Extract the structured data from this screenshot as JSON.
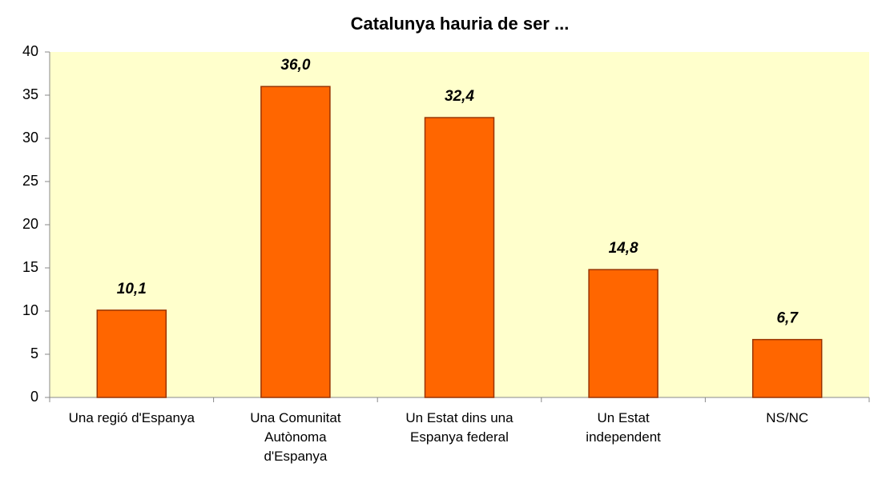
{
  "chart_data": {
    "type": "bar",
    "title": "Catalunya hauria de ser ...",
    "categories": [
      "Una regió d'Espanya",
      "Una Comunitat\nAutònoma\nd'Espanya",
      "Un Estat dins una\nEspanya federal",
      "Un Estat\nindependent",
      "NS/NC"
    ],
    "values": [
      10.1,
      36.0,
      32.4,
      14.8,
      6.7
    ],
    "value_labels": [
      "10,1",
      "36,0",
      "32,4",
      "14,8",
      "6,7"
    ],
    "color": "#ff6600",
    "plot_background": "#ffffcc",
    "ylim": [
      0,
      40
    ],
    "yticks": [
      0,
      5,
      10,
      15,
      20,
      25,
      30,
      35,
      40
    ],
    "grid": false
  }
}
